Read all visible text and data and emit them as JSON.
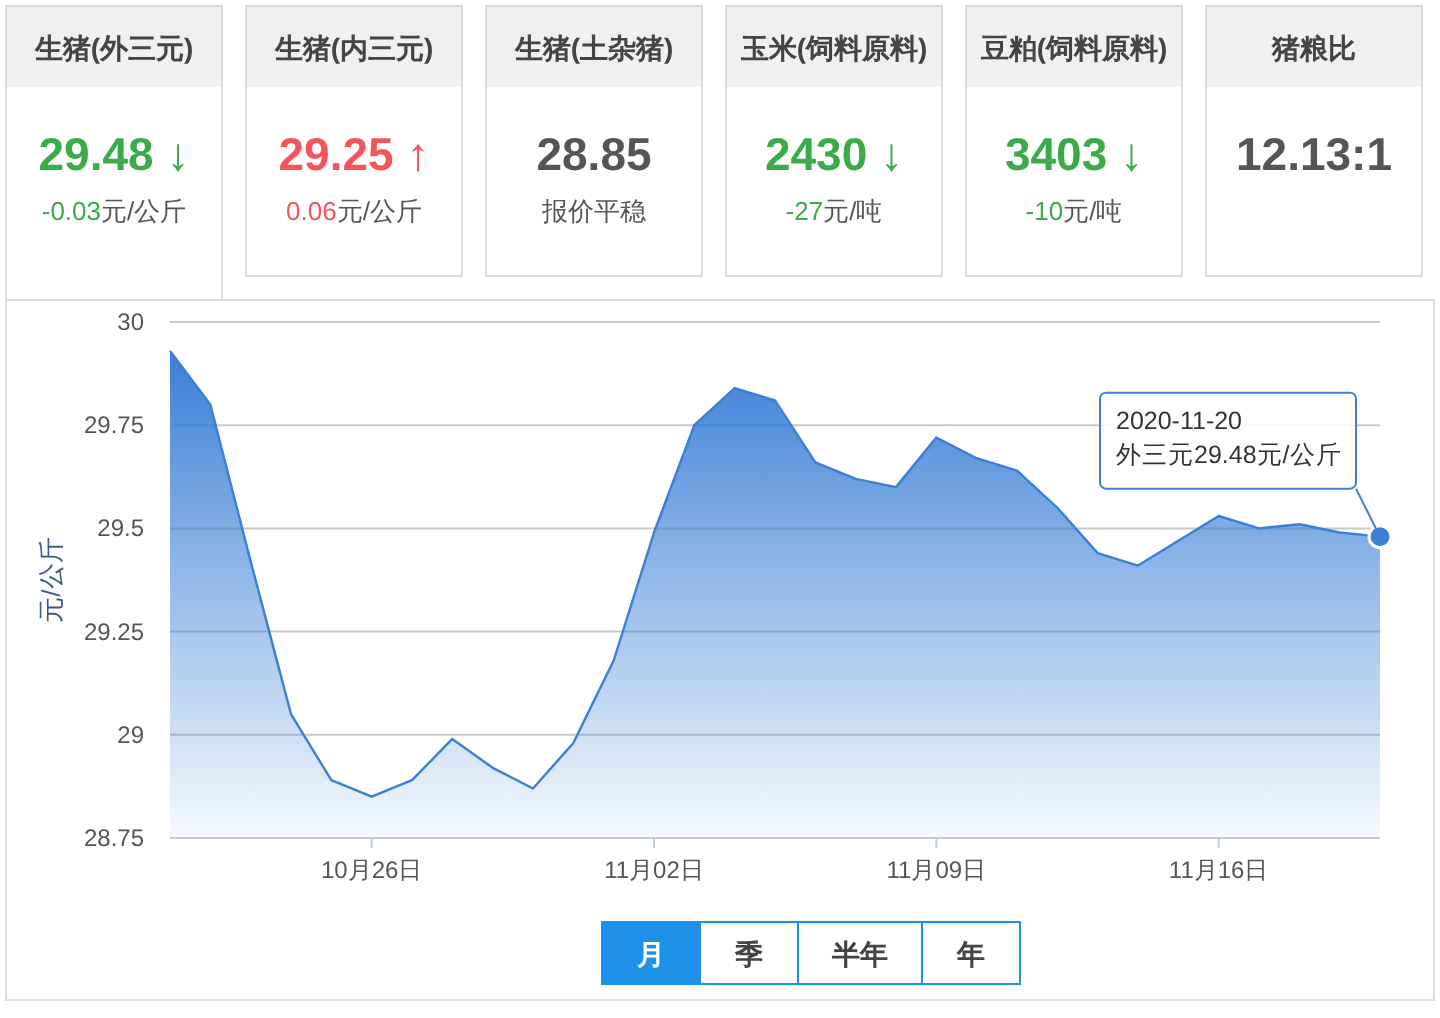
{
  "chart_data": [
    {
      "type": "other",
      "title": "生猪(外三元)",
      "annotations": [
        "29.48 ↓",
        "-0.03元/公斤"
      ],
      "color": "#3aab49"
    },
    {
      "type": "other",
      "title": "生猪(内三元)",
      "annotations": [
        "29.25 ↑",
        "0.06元/公斤"
      ],
      "color": "#f5545b"
    },
    {
      "type": "other",
      "title": "生猪(土杂猪)",
      "annotations": [
        "28.85",
        "报价平稳"
      ],
      "color": "#555555"
    },
    {
      "type": "other",
      "title": "玉米(饲料原料)",
      "annotations": [
        "2430 ↓",
        "-27元/吨"
      ],
      "color": "#3aab49"
    },
    {
      "type": "other",
      "title": "豆粕(饲料原料)",
      "annotations": [
        "3403 ↓",
        "-10元/吨"
      ],
      "color": "#3aab49"
    },
    {
      "type": "other",
      "title": "猪粮比",
      "annotations": [
        "12.13:1"
      ],
      "color": "#555555"
    },
    {
      "type": "area",
      "ylabel": "元/公斤",
      "x": [
        "2020-10-21",
        "2020-10-22",
        "2020-10-23",
        "2020-10-24",
        "2020-10-25",
        "2020-10-26",
        "2020-10-27",
        "2020-10-28",
        "2020-10-29",
        "2020-10-30",
        "2020-10-31",
        "2020-11-01",
        "2020-11-02",
        "2020-11-03",
        "2020-11-04",
        "2020-11-05",
        "2020-11-06",
        "2020-11-07",
        "2020-11-08",
        "2020-11-09",
        "2020-11-10",
        "2020-11-11",
        "2020-11-12",
        "2020-11-13",
        "2020-11-14",
        "2020-11-15",
        "2020-11-16",
        "2020-11-17",
        "2020-11-18",
        "2020-11-19",
        "2020-11-20"
      ],
      "series": [
        {
          "color": "#3b7fd6",
          "values": [
            29.93,
            29.8,
            29.42,
            29.05,
            28.89,
            28.85,
            28.89,
            28.99,
            28.92,
            28.87,
            28.98,
            29.18,
            29.49,
            29.75,
            29.84,
            29.81,
            29.66,
            29.62,
            29.6,
            29.72,
            29.67,
            29.64,
            29.55,
            29.44,
            29.41,
            29.47,
            29.53,
            29.5,
            29.51,
            29.49,
            29.48
          ]
        }
      ],
      "xlim": [
        "2020-10-21",
        "2020-11-20"
      ],
      "xticks": [
        {
          "value": "2020-10-26",
          "label": "10月26日"
        },
        {
          "value": "2020-11-02",
          "label": "11月02日"
        },
        {
          "value": "2020-11-09",
          "label": "11月09日"
        },
        {
          "value": "2020-11-16",
          "label": "11月16日"
        }
      ],
      "ylim": [
        28.75,
        30
      ],
      "yticks": [
        28.75,
        29,
        29.25,
        29.5,
        29.75,
        30
      ],
      "grid": "y",
      "marker": "none",
      "annotations": [
        {
          "text": "2020-11-20\n外三元29.48元/公斤",
          "x": "2020-11-20",
          "y": 29.48
        },
        "月",
        "季",
        "半年",
        "年"
      ]
    }
  ]
}
